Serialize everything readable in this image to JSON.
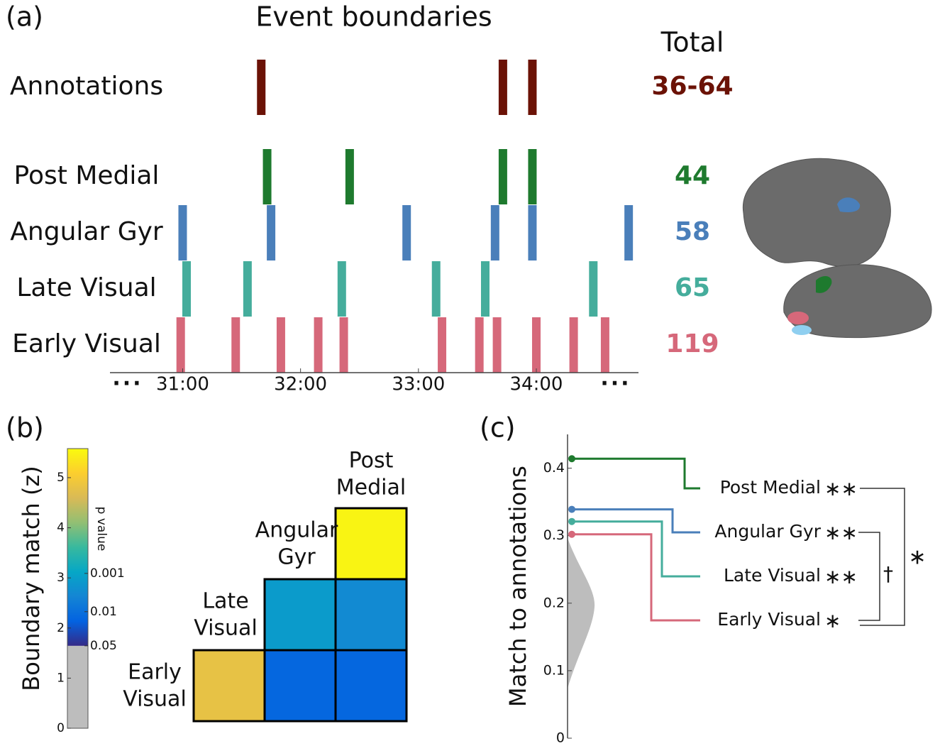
{
  "chart_data": [
    {
      "type": "event-raster",
      "panel": "(a)",
      "title": "Event boundaries",
      "total_title": "Total",
      "xlim": [
        1823,
        2092
      ],
      "xticks": [
        {
          "value": 1860,
          "label": "31:00"
        },
        {
          "value": 1920,
          "label": "32:00"
        },
        {
          "value": 1980,
          "label": "33:00"
        },
        {
          "value": 2040,
          "label": "34:00"
        }
      ],
      "ellipsis": "...",
      "series": [
        {
          "name": "Annotations",
          "color": "#6b1206",
          "total": "36-64",
          "values": [
            1900,
            2023,
            2038
          ]
        },
        {
          "name": "Post Medial",
          "color": "#1e7a2e",
          "total": 44,
          "values": [
            1903,
            1945,
            2023,
            2038
          ]
        },
        {
          "name": "Angular Gyr",
          "color": "#4a7fba",
          "total": 58,
          "values": [
            1860,
            1905,
            1974,
            2019,
            2038,
            2087
          ]
        },
        {
          "name": "Late Visual",
          "color": "#45ad9c",
          "total": 65,
          "values": [
            1862,
            1893,
            1941,
            1989,
            2014,
            2069
          ]
        },
        {
          "name": "Early Visual",
          "color": "#d6687a",
          "total": 119,
          "values": [
            1859,
            1887,
            1910,
            1929,
            1942,
            1992,
            2011,
            2020,
            2040,
            2059,
            2075
          ]
        }
      ]
    },
    {
      "type": "heatmap",
      "panel": "(b)",
      "colorbar_label": "Boundary match (z)",
      "p_label": "p value",
      "clim": [
        0,
        5.58
      ],
      "threshold": 1.645,
      "cticks": [
        0,
        1,
        2,
        3,
        4,
        5
      ],
      "pticks": [
        {
          "value": 1.645,
          "label": "0.05"
        },
        {
          "value": 2.326,
          "label": "0.01"
        },
        {
          "value": 3.09,
          "label": "0.001"
        }
      ],
      "labels": [
        [
          "Early",
          "Visual"
        ],
        [
          "Late",
          "Visual"
        ],
        [
          "Angular",
          "Gyr"
        ],
        [
          "Post",
          "Medial"
        ]
      ],
      "matrix": [
        [
          5.5
        ],
        [
          2.95,
          2.7
        ],
        [
          4.8,
          2.2,
          2.2
        ]
      ]
    },
    {
      "type": "step-dot",
      "panel": "(c)",
      "ylabel": "Match to annotations",
      "ylim": [
        0,
        0.45
      ],
      "yticks": [
        0,
        0.1,
        0.2,
        0.3,
        0.4
      ],
      "series": [
        {
          "name": "Post Medial",
          "color": "#1e7a2e",
          "value": 0.414,
          "significance": "∗∗"
        },
        {
          "name": "Angular Gyr",
          "color": "#4a7fba",
          "value": 0.339,
          "significance": "∗∗"
        },
        {
          "name": "Late Visual",
          "color": "#45ad9c",
          "value": 0.321,
          "significance": "∗∗"
        },
        {
          "name": "Early Visual",
          "color": "#d6687a",
          "value": 0.302,
          "significance": "∗"
        }
      ],
      "brackets": [
        {
          "label": "†"
        },
        {
          "label": "∗"
        }
      ]
    }
  ]
}
